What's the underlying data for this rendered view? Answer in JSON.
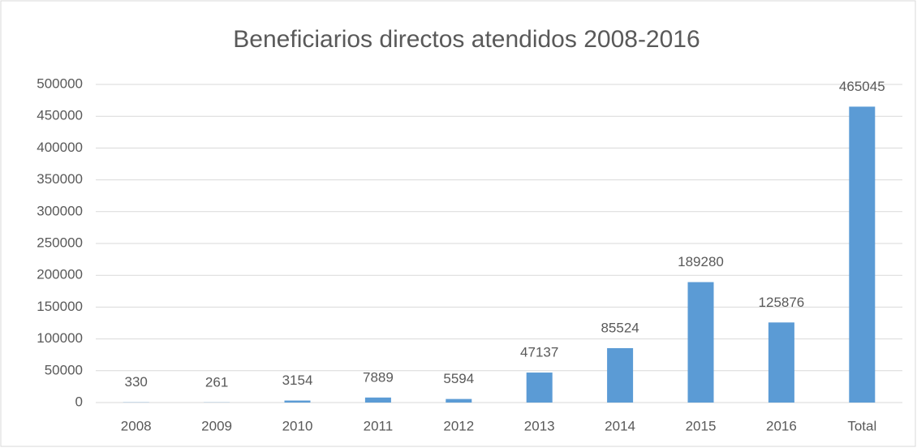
{
  "chart_data": {
    "type": "bar",
    "title": "Beneficiarios directos atendidos 2008-2016",
    "categories": [
      "2008",
      "2009",
      "2010",
      "2011",
      "2012",
      "2013",
      "2014",
      "2015",
      "2016",
      "Total"
    ],
    "values": [
      330,
      261,
      3154,
      7889,
      5594,
      47137,
      85524,
      189280,
      125876,
      465045
    ],
    "color": "#5b9bd5",
    "ylim": [
      0,
      500000
    ],
    "yticks": [
      0,
      50000,
      100000,
      150000,
      200000,
      250000,
      300000,
      350000,
      400000,
      450000,
      500000
    ],
    "grid": true
  }
}
